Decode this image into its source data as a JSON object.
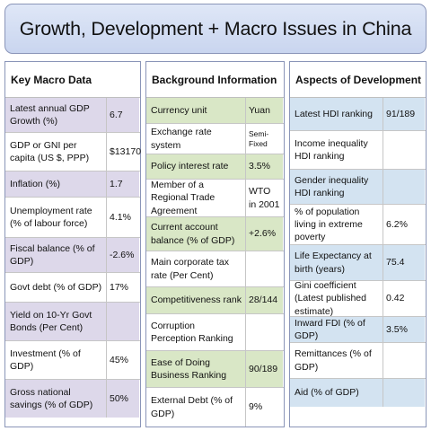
{
  "title": "Growth, Development + Macro Issues in China",
  "columns": [
    {
      "header": "Key Macro Data",
      "rows": [
        {
          "label": "Latest annual GDP Growth (%)",
          "value": "6.7",
          "shaded": true
        },
        {
          "label": "GDP or GNI per capita (US $, PPP)",
          "value": "$13170",
          "shaded": false
        },
        {
          "label": "Inflation (%)",
          "value": "1.7",
          "shaded": true
        },
        {
          "label": "Unemployment rate (% of labour force)",
          "value": "4.1%",
          "shaded": false
        },
        {
          "label": "Fiscal balance (% of GDP)",
          "value": "-2.6%",
          "shaded": true
        },
        {
          "label": "Govt debt (% of GDP)",
          "value": "17%",
          "shaded": false
        },
        {
          "label": "Yield on 10-Yr Govt Bonds (Per Cent)",
          "value": "",
          "shaded": true
        },
        {
          "label": "Investment  (% of GDP)",
          "value": "45%",
          "shaded": false
        },
        {
          "label": "Gross national savings (% of GDP)",
          "value": "50%",
          "shaded": true
        }
      ]
    },
    {
      "header": "Background Information",
      "rows": [
        {
          "label": "Currency unit",
          "value": "Yuan",
          "shaded": true
        },
        {
          "label": "Exchange rate system",
          "value": "Semi-Fixed",
          "shaded": false,
          "small": true
        },
        {
          "label": "Policy interest rate",
          "value": "3.5%",
          "shaded": true
        },
        {
          "label": "Member of a Regional Trade Agreement",
          "value": "WTO in 2001",
          "shaded": false
        },
        {
          "label": "Current account balance (% of GDP)",
          "value": "+2.6%",
          "shaded": true
        },
        {
          "label": "Main corporate tax rate (Per Cent)",
          "value": "",
          "shaded": false
        },
        {
          "label": "Competitiveness rank",
          "value": "28/144",
          "shaded": true
        },
        {
          "label": "Corruption Perception Ranking",
          "value": "",
          "shaded": false
        },
        {
          "label": "Ease of Doing Business Ranking",
          "value": "90/189",
          "shaded": true
        },
        {
          "label": "External Debt (% of GDP)",
          "value": "9%",
          "shaded": false
        }
      ]
    },
    {
      "header": "Aspects of Development",
      "rows": [
        {
          "label": "Latest HDI ranking",
          "value": "91/189",
          "shaded": true
        },
        {
          "label": "Income inequality HDI ranking",
          "value": "",
          "shaded": false
        },
        {
          "label": "Gender inequality HDI ranking",
          "value": "",
          "shaded": true
        },
        {
          "label": "% of population living in extreme poverty",
          "value": "6.2%",
          "shaded": false
        },
        {
          "label": "Life Expectancy at birth (years)",
          "value": "75.4",
          "shaded": true
        },
        {
          "label": "Gini coefficient (Latest published estimate)",
          "value": "0.42",
          "shaded": false
        },
        {
          "label": "Inward FDI (% of GDP)",
          "value": "3.5%",
          "shaded": true
        },
        {
          "label": "Remittances (% of GDP)",
          "value": "",
          "shaded": false
        },
        {
          "label": "Aid (% of GDP)",
          "value": "",
          "shaded": true
        }
      ]
    }
  ]
}
